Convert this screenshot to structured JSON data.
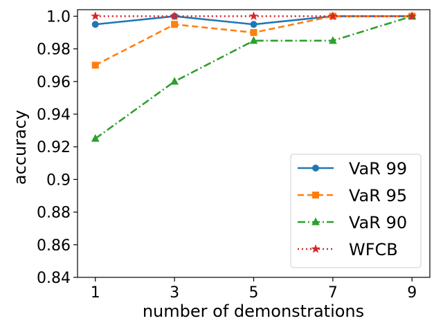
{
  "chart_data": {
    "type": "line",
    "title": "",
    "xlabel": "number of demonstrations",
    "ylabel": "accuracy",
    "x": [
      1,
      3,
      5,
      7,
      9
    ],
    "xticks": [
      "1",
      "3",
      "5",
      "7",
      "9"
    ],
    "ylim": [
      0.84,
      1.004
    ],
    "yticks": [
      0.84,
      0.86,
      0.88,
      0.9,
      0.92,
      0.94,
      0.96,
      0.98,
      1.0
    ],
    "ytick_labels": [
      "0.84",
      "0.86",
      "0.88",
      "0.9",
      "0.92",
      "0.94",
      "0.96",
      "0.98",
      "1.0"
    ],
    "grid": false,
    "legend_position": "bottom-right",
    "series": [
      {
        "name": "VaR 99",
        "values": [
          0.995,
          1.0,
          0.995,
          1.0,
          1.0
        ],
        "color": "#1f77b4",
        "marker": "circle",
        "line_style": "solid"
      },
      {
        "name": "VaR 95",
        "values": [
          0.97,
          0.995,
          0.99,
          1.0,
          1.0
        ],
        "color": "#ff7f0e",
        "marker": "square",
        "line_style": "dashed"
      },
      {
        "name": "VaR 90",
        "values": [
          0.925,
          0.96,
          0.985,
          0.985,
          1.0
        ],
        "color": "#2ca02c",
        "marker": "triangle",
        "line_style": "dashdot"
      },
      {
        "name": "WFCB",
        "values": [
          1.0,
          1.0,
          1.0,
          1.0,
          1.0
        ],
        "color": "#d62728",
        "marker": "star",
        "line_style": "dotted"
      }
    ]
  }
}
